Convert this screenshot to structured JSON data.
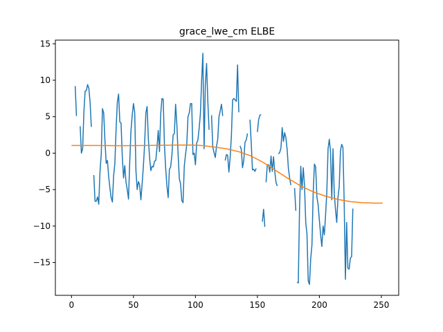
{
  "chart_data": {
    "type": "line",
    "title": "grace_lwe_cm ELBE",
    "xlabel": "",
    "ylabel": "",
    "xlim": [
      -13,
      264
    ],
    "ylim": [
      -19.5,
      15.5
    ],
    "xticks": [
      0,
      50,
      100,
      150,
      200,
      250
    ],
    "yticks": [
      -15,
      -10,
      -5,
      0,
      5,
      10,
      15
    ],
    "grid": false,
    "legend": "none",
    "series": [
      {
        "color": "#1f77b4",
        "segments": [
          [
            [
              3,
              9.2
            ],
            [
              4,
              5.1
            ]
          ],
          [
            [
              7,
              3.7
            ],
            [
              8,
              0.0
            ],
            [
              9,
              0.6
            ],
            [
              10,
              5.6
            ],
            [
              11,
              8.5
            ],
            [
              12,
              8.6
            ],
            [
              13,
              9.4
            ],
            [
              14,
              8.9
            ],
            [
              15,
              7.0
            ],
            [
              16,
              3.6
            ]
          ],
          [
            [
              18,
              -3.0
            ],
            [
              19,
              -6.6
            ],
            [
              20,
              -6.6
            ],
            [
              21,
              -6.0
            ],
            [
              22,
              -7.0
            ],
            [
              23,
              -2.5
            ],
            [
              24,
              -0.2
            ],
            [
              25,
              6.1
            ],
            [
              26,
              5.5
            ],
            [
              27,
              1.7
            ],
            [
              28,
              -1.4
            ],
            [
              29,
              -1.0
            ],
            [
              30,
              -3.2
            ],
            [
              31,
              -4.8
            ],
            [
              32,
              -6.1
            ],
            [
              33,
              -6.7
            ],
            [
              34,
              -3.1
            ],
            [
              35,
              -1.4
            ],
            [
              36,
              3.4
            ],
            [
              37,
              7.0
            ],
            [
              38,
              8.1
            ],
            [
              39,
              4.3
            ],
            [
              40,
              4.1
            ],
            [
              41,
              -0.5
            ],
            [
              42,
              -3.4
            ],
            [
              43,
              -1.7
            ],
            [
              44,
              -4.0
            ],
            [
              45,
              -5.0
            ],
            [
              46,
              -6.3
            ],
            [
              47,
              -1.2
            ],
            [
              48,
              3.1
            ],
            [
              49,
              5.2
            ],
            [
              50,
              6.8
            ],
            [
              51,
              5.6
            ],
            [
              52,
              -2.4
            ],
            [
              53,
              -5.0
            ],
            [
              54,
              -3.9
            ],
            [
              55,
              -4.4
            ],
            [
              56,
              -6.4
            ],
            [
              57,
              -4.2
            ],
            [
              58,
              -1.8
            ],
            [
              59,
              1.2
            ],
            [
              60,
              5.5
            ],
            [
              61,
              6.4
            ],
            [
              62,
              2.0
            ],
            [
              63,
              -0.6
            ],
            [
              64,
              -2.4
            ],
            [
              65,
              -1.8
            ],
            [
              66,
              -1.9
            ],
            [
              67,
              -1.1
            ],
            [
              68,
              -1.0
            ],
            [
              69,
              0.8
            ],
            [
              70,
              3.1
            ],
            [
              71,
              0.2
            ],
            [
              72,
              5.4
            ],
            [
              73,
              7.5
            ],
            [
              74,
              7.4
            ],
            [
              75,
              1.1
            ],
            [
              76,
              -2.1
            ],
            [
              77,
              -4.5
            ],
            [
              78,
              -6.1
            ],
            [
              79,
              -2.2
            ],
            [
              80,
              -1.9
            ],
            [
              81,
              -0.3
            ],
            [
              82,
              2.5
            ],
            [
              83,
              2.7
            ],
            [
              84,
              6.7
            ],
            [
              85,
              4.0
            ],
            [
              86,
              -0.1
            ],
            [
              87,
              -3.5
            ],
            [
              88,
              -4.2
            ],
            [
              89,
              -6.5
            ],
            [
              90,
              -6.8
            ],
            [
              91,
              -1.8
            ],
            [
              92,
              -0.2
            ],
            [
              93,
              1.2
            ],
            [
              94,
              5.0
            ],
            [
              95,
              5.5
            ],
            [
              96,
              6.8
            ],
            [
              97,
              6.8
            ],
            [
              98,
              -0.2
            ],
            [
              99,
              0.0
            ],
            [
              100,
              -1.6
            ],
            [
              101,
              1.4
            ],
            [
              102,
              1.8
            ],
            [
              103,
              3.4
            ],
            [
              104,
              5.4
            ],
            [
              105,
              9.9
            ],
            [
              106,
              13.7
            ],
            [
              107,
              0.6
            ],
            [
              108,
              9.4
            ],
            [
              109,
              12.3
            ],
            [
              110,
              7.1
            ],
            [
              111,
              3.2
            ]
          ],
          [
            [
              113,
              5.2
            ],
            [
              114,
              0.8
            ],
            [
              115,
              0.1
            ],
            [
              116,
              -0.6
            ],
            [
              117,
              0.9
            ],
            [
              118,
              1.9
            ],
            [
              119,
              5.0
            ],
            [
              120,
              5.8
            ],
            [
              121,
              6.7
            ],
            [
              122,
              5.1
            ]
          ],
          [
            [
              124,
              -1.0
            ],
            [
              125,
              -0.2
            ],
            [
              126,
              -0.3
            ],
            [
              127,
              -2.6
            ],
            [
              128,
              -0.6
            ],
            [
              129,
              2.3
            ],
            [
              130,
              7.3
            ],
            [
              131,
              7.5
            ],
            [
              132,
              7.3
            ],
            [
              133,
              7.1
            ],
            [
              134,
              12.1
            ],
            [
              135,
              5.6
            ]
          ],
          [
            [
              136,
              1.0
            ],
            [
              137,
              0.5
            ],
            [
              138,
              -2.0
            ],
            [
              139,
              -1.0
            ],
            [
              140,
              1.5
            ],
            [
              141,
              1.8
            ],
            [
              142,
              2.7
            ]
          ],
          [
            [
              144,
              4.6
            ],
            [
              145,
              1.5
            ],
            [
              146,
              -2.3
            ],
            [
              147,
              -2.2
            ],
            [
              148,
              -2.5
            ],
            [
              149,
              -2.1
            ]
          ],
          [
            [
              150,
              2.9
            ],
            [
              151,
              4.6
            ],
            [
              152,
              5.2
            ],
            [
              153,
              5.3
            ]
          ],
          [
            [
              154,
              -9.4
            ],
            [
              155,
              -7.7
            ],
            [
              156,
              -10.1
            ]
          ],
          [
            [
              157,
              -4.0
            ],
            [
              158,
              -1.6
            ],
            [
              159,
              -1.6
            ],
            [
              160,
              -2.6
            ],
            [
              161,
              -0.4
            ],
            [
              162,
              -2.5
            ],
            [
              163,
              -0.5
            ],
            [
              164,
              -2.5
            ],
            [
              165,
              -4.0
            ],
            [
              166,
              -4.5
            ]
          ],
          [
            [
              167,
              -0.1
            ],
            [
              168,
              0.1
            ],
            [
              169,
              0.7
            ],
            [
              170,
              3.5
            ],
            [
              171,
              1.6
            ],
            [
              172,
              2.8
            ],
            [
              173,
              2.1
            ],
            [
              174,
              0.5
            ],
            [
              175,
              -2.1
            ],
            [
              176,
              -3.4
            ],
            [
              177,
              -4.4
            ]
          ],
          [
            [
              180,
              -4.8
            ],
            [
              181,
              -7.9
            ]
          ],
          [
            [
              182,
              -17.7
            ],
            [
              183,
              -17.8
            ],
            [
              184,
              -7.6
            ],
            [
              185,
              -1.8
            ],
            [
              186,
              -5.0
            ],
            [
              187,
              -2.0
            ],
            [
              188,
              -4.4
            ],
            [
              189,
              -9.5
            ],
            [
              190,
              -11.1
            ],
            [
              191,
              -17.5
            ],
            [
              192,
              -18.0
            ],
            [
              193,
              -14.5
            ],
            [
              194,
              -12.6
            ],
            [
              195,
              -5.5
            ],
            [
              196,
              -1.5
            ],
            [
              197,
              -1.9
            ],
            [
              198,
              -6.0
            ],
            [
              199,
              -7.1
            ],
            [
              200,
              -9.2
            ],
            [
              201,
              -11.2
            ],
            [
              202,
              -12.8
            ],
            [
              203,
              -10.0
            ],
            [
              204,
              -11.2
            ],
            [
              205,
              -8.5
            ],
            [
              206,
              -5.4
            ],
            [
              207,
              0.6
            ],
            [
              208,
              1.9
            ],
            [
              209,
              0.2
            ],
            [
              210,
              -6.4
            ],
            [
              211,
              0.6
            ],
            [
              212,
              -5.5
            ],
            [
              213,
              -7.7
            ],
            [
              214,
              -9.5
            ],
            [
              215,
              -6.1
            ],
            [
              216,
              -4.6
            ],
            [
              217,
              0.3
            ],
            [
              218,
              1.2
            ],
            [
              219,
              0.8
            ],
            [
              220,
              -6.6
            ],
            [
              221,
              -17.3
            ],
            [
              222,
              -9.5
            ],
            [
              223,
              -15.8
            ],
            [
              224,
              -15.9
            ],
            [
              225,
              -14.4
            ],
            [
              226,
              -14.2
            ],
            [
              227,
              -7.6
            ]
          ]
        ]
      },
      {
        "color": "#ff7f0e",
        "segments": [
          [
            [
              0,
              1.05
            ],
            [
              20,
              1.05
            ],
            [
              40,
              1.02
            ],
            [
              60,
              1.05
            ],
            [
              80,
              1.1
            ],
            [
              95,
              1.12
            ],
            [
              105,
              1.05
            ],
            [
              115,
              0.85
            ],
            [
              125,
              0.6
            ],
            [
              135,
              0.2
            ],
            [
              145,
              -0.4
            ],
            [
              155,
              -1.3
            ],
            [
              165,
              -2.4
            ],
            [
              175,
              -3.5
            ],
            [
              185,
              -4.5
            ],
            [
              195,
              -5.3
            ],
            [
              205,
              -5.9
            ],
            [
              215,
              -6.35
            ],
            [
              225,
              -6.65
            ],
            [
              235,
              -6.8
            ],
            [
              245,
              -6.85
            ],
            [
              251,
              -6.85
            ]
          ]
        ]
      }
    ]
  }
}
